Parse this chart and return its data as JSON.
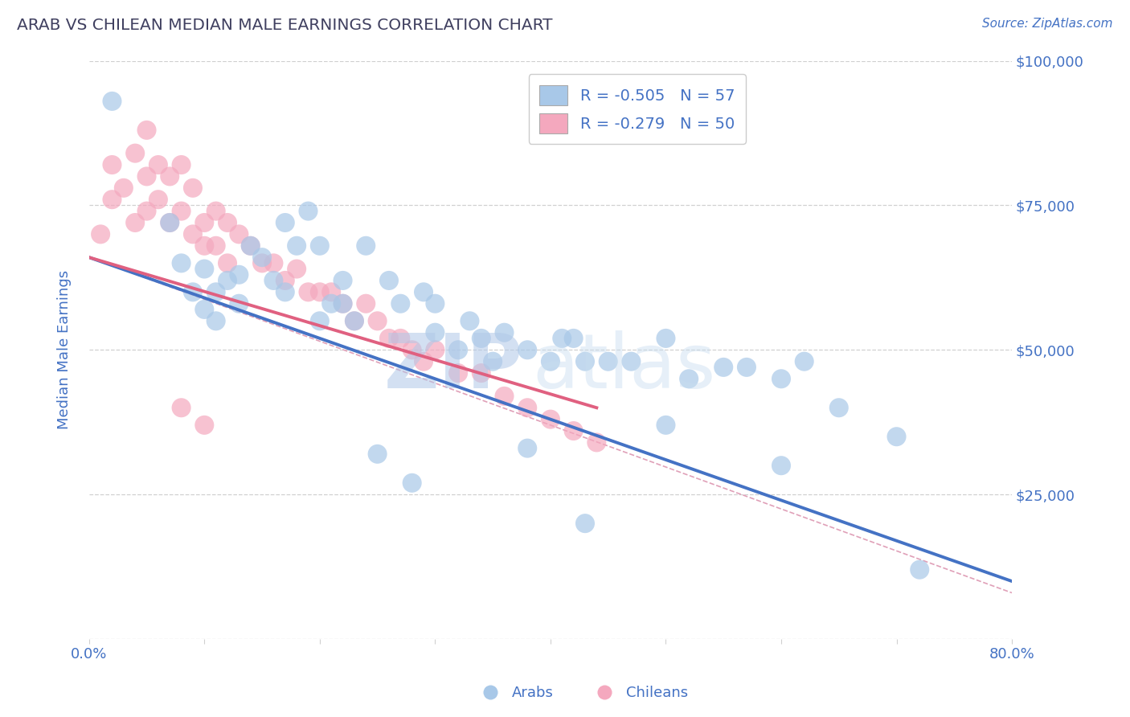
{
  "title": "ARAB VS CHILEAN MEDIAN MALE EARNINGS CORRELATION CHART",
  "source": "Source: ZipAtlas.com",
  "ylabel": "Median Male Earnings",
  "watermark_zip": "ZIP",
  "watermark_atlas": "atlas",
  "xlim": [
    0.0,
    0.8
  ],
  "ylim": [
    0,
    100000
  ],
  "ytick_values": [
    0,
    25000,
    50000,
    75000,
    100000
  ],
  "xtick_values": [
    0.0,
    0.1,
    0.2,
    0.3,
    0.4,
    0.5,
    0.6,
    0.7,
    0.8
  ],
  "arab_color": "#a8c8e8",
  "chilean_color": "#f4a8be",
  "arab_line_color": "#4472c4",
  "chilean_line_color": "#e06080",
  "arab_R": -0.505,
  "arab_N": 57,
  "chilean_R": -0.279,
  "chilean_N": 50,
  "title_color": "#404060",
  "axis_color": "#4472c4",
  "background_color": "#ffffff",
  "grid_color": "#d0d0d0",
  "arab_scatter_x": [
    0.02,
    0.17,
    0.18,
    0.19,
    0.2,
    0.07,
    0.08,
    0.1,
    0.11,
    0.12,
    0.13,
    0.14,
    0.15,
    0.13,
    0.09,
    0.1,
    0.11,
    0.16,
    0.17,
    0.2,
    0.21,
    0.22,
    0.22,
    0.23,
    0.24,
    0.26,
    0.27,
    0.29,
    0.3,
    0.3,
    0.32,
    0.33,
    0.34,
    0.35,
    0.36,
    0.38,
    0.4,
    0.41,
    0.42,
    0.43,
    0.45,
    0.47,
    0.5,
    0.52,
    0.55,
    0.57,
    0.6,
    0.62,
    0.65,
    0.7,
    0.25,
    0.28,
    0.38,
    0.43,
    0.5,
    0.6,
    0.72
  ],
  "arab_scatter_y": [
    93000,
    72000,
    68000,
    74000,
    68000,
    72000,
    65000,
    64000,
    60000,
    62000,
    63000,
    68000,
    66000,
    58000,
    60000,
    57000,
    55000,
    62000,
    60000,
    55000,
    58000,
    62000,
    58000,
    55000,
    68000,
    62000,
    58000,
    60000,
    58000,
    53000,
    50000,
    55000,
    52000,
    48000,
    53000,
    50000,
    48000,
    52000,
    52000,
    48000,
    48000,
    48000,
    52000,
    45000,
    47000,
    47000,
    45000,
    48000,
    40000,
    35000,
    32000,
    27000,
    33000,
    20000,
    37000,
    30000,
    12000
  ],
  "chilean_scatter_x": [
    0.01,
    0.02,
    0.02,
    0.03,
    0.04,
    0.04,
    0.05,
    0.05,
    0.05,
    0.06,
    0.06,
    0.07,
    0.07,
    0.08,
    0.08,
    0.09,
    0.09,
    0.1,
    0.1,
    0.11,
    0.11,
    0.12,
    0.12,
    0.13,
    0.14,
    0.15,
    0.16,
    0.17,
    0.18,
    0.19,
    0.2,
    0.21,
    0.22,
    0.23,
    0.24,
    0.25,
    0.26,
    0.27,
    0.28,
    0.29,
    0.3,
    0.32,
    0.34,
    0.36,
    0.38,
    0.4,
    0.42,
    0.44,
    0.08,
    0.1
  ],
  "chilean_scatter_y": [
    70000,
    82000,
    76000,
    78000,
    84000,
    72000,
    88000,
    80000,
    74000,
    82000,
    76000,
    80000,
    72000,
    82000,
    74000,
    78000,
    70000,
    72000,
    68000,
    74000,
    68000,
    72000,
    65000,
    70000,
    68000,
    65000,
    65000,
    62000,
    64000,
    60000,
    60000,
    60000,
    58000,
    55000,
    58000,
    55000,
    52000,
    52000,
    50000,
    48000,
    50000,
    46000,
    46000,
    42000,
    40000,
    38000,
    36000,
    34000,
    40000,
    37000
  ],
  "arab_line_x": [
    0.0,
    0.8
  ],
  "arab_line_y": [
    66000,
    10000
  ],
  "chilean_line_x": [
    0.0,
    0.44
  ],
  "chilean_line_y": [
    66000,
    40000
  ],
  "ref_line_x": [
    0.0,
    0.8
  ],
  "ref_line_y": [
    66000,
    8000
  ]
}
